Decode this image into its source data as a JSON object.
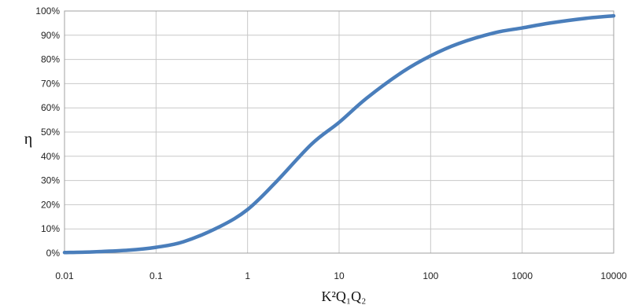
{
  "chart_data": {
    "type": "line",
    "title": "",
    "xlabel": "K²Q₁Q₂",
    "ylabel": "η",
    "xscale": "log",
    "xlim": [
      0.01,
      10000
    ],
    "ylim": [
      0,
      1
    ],
    "grid": true,
    "legend": "none",
    "x_tick_labels": [
      "0.01",
      "0.1",
      "1",
      "10",
      "100",
      "1000",
      "10000"
    ],
    "x_ticks": [
      0.01,
      0.1,
      1,
      10,
      100,
      1000,
      10000
    ],
    "y_tick_labels": [
      "0%",
      "10%",
      "20%",
      "30%",
      "40%",
      "50%",
      "60%",
      "70%",
      "80%",
      "90%",
      "100%"
    ],
    "y_ticks": [
      0,
      0.1,
      0.2,
      0.3,
      0.4,
      0.5,
      0.6,
      0.7,
      0.8,
      0.9,
      1.0
    ],
    "series": [
      {
        "color": "#4a7ebb",
        "x": [
          0.01,
          0.02,
          0.05,
          0.1,
          0.2,
          0.5,
          1,
          2,
          5,
          10,
          20,
          50,
          100,
          200,
          500,
          1000,
          2000,
          5000,
          10000
        ],
        "y": [
          0.0025,
          0.005,
          0.012,
          0.024,
          0.047,
          0.11,
          0.18,
          0.29,
          0.45,
          0.54,
          0.64,
          0.75,
          0.815,
          0.865,
          0.91,
          0.93,
          0.95,
          0.97,
          0.98
        ]
      }
    ]
  }
}
